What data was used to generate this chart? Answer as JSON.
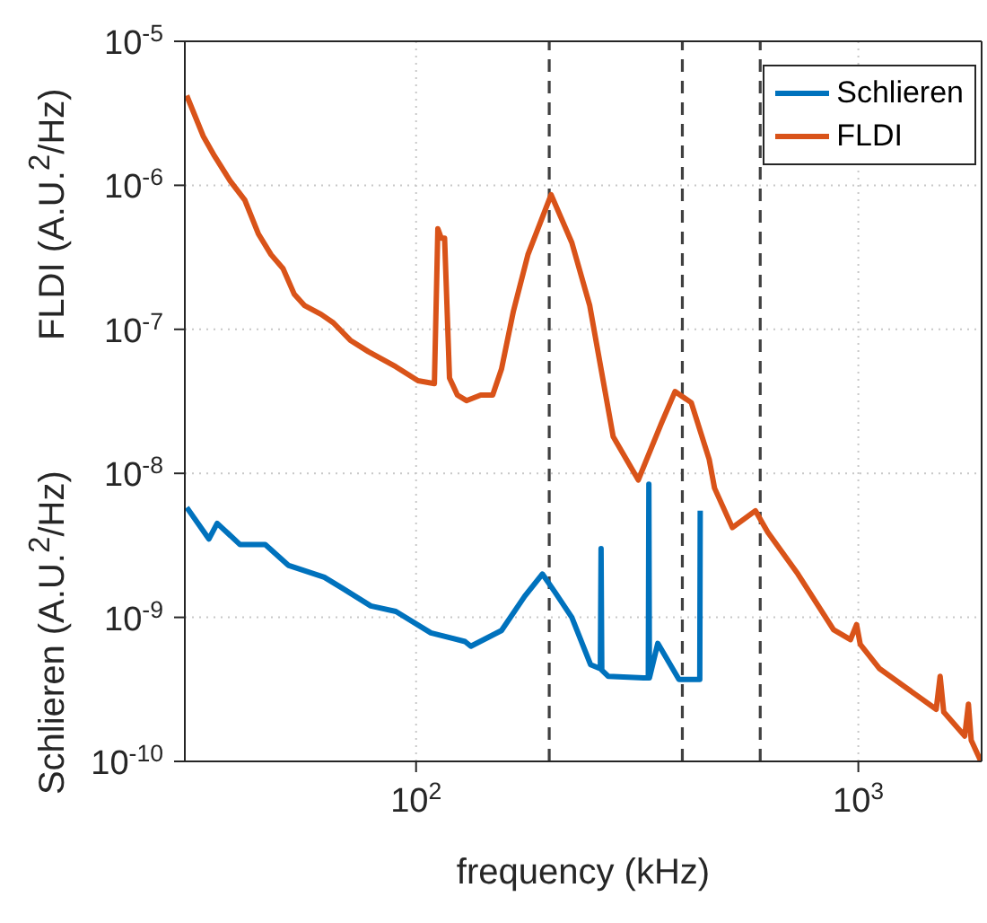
{
  "chart_data": {
    "type": "line",
    "xlabel": "frequency (kHz)",
    "ylabel": "Schlieren (A.U.$^{2}$/Hz)",
    "annotations": [
      "FLDI (A.U.$^{2}$/Hz)"
    ],
    "log": "xy",
    "grid": true,
    "legend": "top right",
    "line_style": "solid",
    "marker": "none",
    "xlim": [
      30,
      1900
    ],
    "xticks": [
      {
        "value": 100,
        "label": "10$^{2}$"
      },
      {
        "value": 1000,
        "label": "10$^{3}$"
      }
    ],
    "ylim": [
      1e-10,
      1e-05
    ],
    "yticks": [
      {
        "value": 1e-10,
        "label": "10$^{-10}$"
      },
      {
        "value": 1e-09,
        "label": "10$^{-9}$"
      },
      {
        "value": 1e-08,
        "label": "10$^{-8}$"
      },
      {
        "value": 1e-07,
        "label": "10$^{-7}$"
      },
      {
        "value": 1e-06,
        "label": "10$^{-6}$"
      },
      {
        "value": 1e-05,
        "label": "10$^{-5}$"
      }
    ],
    "ref_lines": [
      {
        "axis": "x",
        "value": 200,
        "color": "#404040",
        "line_style": "dashed"
      },
      {
        "axis": "x",
        "value": 400,
        "color": "#404040",
        "line_style": "dashed"
      },
      {
        "axis": "x",
        "value": 600,
        "color": "#404040",
        "line_style": "dashed"
      }
    ],
    "series": [
      {
        "name": "Schlieren",
        "color": "#0072bd",
        "x": [
          30.3,
          34,
          35.5,
          40,
          45.6,
          51.4,
          62,
          68,
          79,
          90,
          108,
          129,
          133,
          156,
          176,
          193,
          206,
          225,
          248,
          261,
          262,
          263,
          272,
          327,
          335,
          336,
          337,
          352,
          393,
          438,
          439
        ],
        "values": [
          5.8e-09,
          3.5e-09,
          4.5e-09,
          3.2e-09,
          3.2e-09,
          2.3e-09,
          1.9e-09,
          1.6e-09,
          1.2e-09,
          1.1e-09,
          7.8e-10,
          6.8e-10,
          6.3e-10,
          8.1e-10,
          1.4e-09,
          2e-09,
          1.5e-09,
          1e-09,
          4.7e-10,
          4.4e-10,
          3e-09,
          4.3e-10,
          3.9e-10,
          3.8e-10,
          3.8e-10,
          8.4e-09,
          3.8e-10,
          6.6e-10,
          3.7e-10,
          3.7e-10,
          5.5e-09
        ]
      },
      {
        "name": "FLDI",
        "color": "#d95319",
        "x": [
          30.3,
          33,
          35,
          38,
          41,
          44,
          47,
          50,
          53,
          56,
          61,
          65,
          71,
          78,
          90,
          101,
          110,
          112,
          114,
          116,
          119,
          124,
          130,
          140,
          149,
          156,
          166,
          179,
          202,
          225,
          247,
          279,
          318,
          358,
          385,
          419,
          460,
          473,
          519,
          585,
          624,
          730,
          879,
          960,
          991,
          1010,
          1117,
          1500,
          1531,
          1560,
          1740,
          1774,
          1800,
          1893
        ],
        "values": [
          4.2e-06,
          2.2e-06,
          1.6e-06,
          1.07e-06,
          7.9e-07,
          4.6e-07,
          3.3e-07,
          2.65e-07,
          1.76e-07,
          1.46e-07,
          1.27e-07,
          1.11e-07,
          8.4e-08,
          7e-08,
          5.5e-08,
          4.4e-08,
          4.2e-08,
          5e-07,
          4.3e-07,
          4.3e-07,
          4.6e-08,
          3.5e-08,
          3.2e-08,
          3.5e-08,
          3.5e-08,
          5.3e-08,
          1.34e-07,
          3.3e-07,
          8.6e-07,
          4e-07,
          1.46e-07,
          1.8e-08,
          9e-09,
          2.2e-08,
          3.7e-08,
          3.1e-08,
          1.25e-08,
          7.9e-09,
          4.2e-09,
          5.5e-09,
          3.9e-09,
          2e-09,
          8.2e-10,
          7e-10,
          8.9e-10,
          6.5e-10,
          4.4e-10,
          2.3e-10,
          3.9e-10,
          2.2e-10,
          1.5e-10,
          2.5e-10,
          1.4e-10,
          1e-10
        ]
      }
    ]
  }
}
